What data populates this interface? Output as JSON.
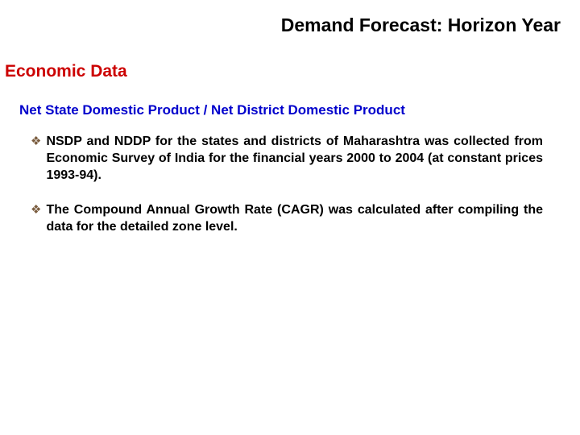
{
  "colors": {
    "title": "#000000",
    "section_heading": "#cc0000",
    "sub_heading": "#0000cc",
    "bullet_marker": "#7a5c3e",
    "body_text": "#000000",
    "background": "#ffffff"
  },
  "title": "Demand Forecast: Horizon Year",
  "section_heading": "Economic Data",
  "sub_heading": "Net State Domestic Product / Net District Domestic Product",
  "bullets": [
    "NSDP and NDDP for the states and districts of Maharashtra was collected from Economic Survey of India for the financial years 2000 to 2004 (at constant prices 1993-94).",
    "The Compound Annual Growth Rate (CAGR) was calculated after compiling the data for the detailed zone level."
  ]
}
